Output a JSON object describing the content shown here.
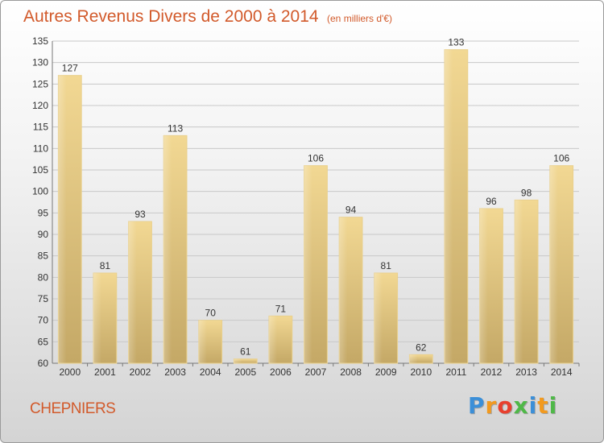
{
  "chart_data": {
    "type": "bar",
    "title": "Autres Revenus Divers de 2000 à 2014",
    "subtitle": "(en milliers d'€)",
    "categories": [
      "2000",
      "2001",
      "2002",
      "2003",
      "2004",
      "2005",
      "2006",
      "2007",
      "2008",
      "2009",
      "2010",
      "2011",
      "2012",
      "2013",
      "2014"
    ],
    "values": [
      127,
      81,
      93,
      113,
      70,
      61,
      71,
      106,
      94,
      81,
      62,
      133,
      96,
      98,
      106
    ],
    "ylim": [
      60,
      135
    ],
    "yticks": [
      60,
      65,
      70,
      75,
      80,
      85,
      90,
      95,
      100,
      105,
      110,
      115,
      120,
      125,
      130,
      135
    ],
    "grid": true,
    "bar_color": "#e3c57c"
  },
  "footer": {
    "commune": "CHEPNIERS"
  },
  "logo": {
    "letters": [
      "P",
      "r",
      "o",
      "x",
      "i",
      "t",
      "i"
    ],
    "colors": [
      "#3b8fd8",
      "#f29a1f",
      "#e8402e",
      "#4fb848",
      "#3b8fd8",
      "#f29a1f",
      "#4fb848"
    ]
  }
}
